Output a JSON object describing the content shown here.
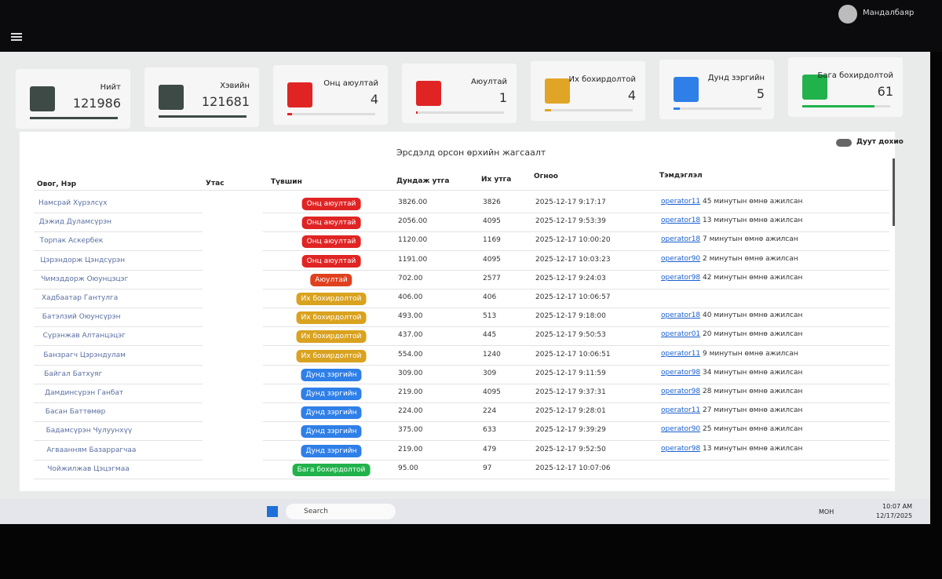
{
  "header": {
    "user": "Мандалбаяр"
  },
  "cards": [
    {
      "label": "Нийт",
      "value": 121986,
      "color": "#3d4a45"
    },
    {
      "label": "Хэвийн",
      "value": 121681,
      "color": "#3d4a45"
    },
    {
      "label": "Онц аюултай",
      "value": 4,
      "color": "#e02424"
    },
    {
      "label": "Аюултай",
      "value": 1,
      "color": "#e02424"
    },
    {
      "label": "Их бохирдолтой",
      "value": 4,
      "color": "#e0a526"
    },
    {
      "label": "Дунд зэргийн",
      "value": 5,
      "color": "#2f7fe8"
    },
    {
      "label": "Бага бохирдолтой",
      "value": 61,
      "color": "#22b24c"
    }
  ],
  "table": {
    "title": "Эрсдэлд орсон өрхийн жагсаалт",
    "toggle": "Дуут дохио",
    "columns": [
      "Овог, Нэр",
      "Утас",
      "Түвшин",
      "Дундаж утга",
      "Их утга",
      "Огноо",
      "Тэмдэглэл"
    ],
    "rows": [
      {
        "name": "Намсрай Хүрэлсүх",
        "level": "Онц аюултай",
        "color": "#e02424",
        "avg": "3826.00",
        "max": 3826,
        "date": "2025-12-17 9:17:17",
        "operator": "operator11",
        "note": "45 минутын өмнө ажилсан"
      },
      {
        "name": "Дэжид Дуламсүрэн",
        "level": "Онц аюултай",
        "color": "#e02424",
        "avg": "2056.00",
        "max": 4095,
        "date": "2025-12-17 9:53:39",
        "operator": "operator18",
        "note": "13 минутын өмнө ажилсан"
      },
      {
        "name": "Торпак Аскербек",
        "level": "Онц аюултай",
        "color": "#e02424",
        "avg": "1120.00",
        "max": 1169,
        "date": "2025-12-17 10:00:20",
        "operator": "operator18",
        "note": "7 минутын өмнө ажилсан"
      },
      {
        "name": "Цэрэндорж Цэндсүрэн",
        "level": "Онц аюултай",
        "color": "#e02424",
        "avg": "1191.00",
        "max": 4095,
        "date": "2025-12-17 10:03:23",
        "operator": "operator90",
        "note": "2 минутын өмнө ажилсан"
      },
      {
        "name": "Чимэддорж Оюунцэцэг",
        "level": "Аюултай",
        "color": "#e0401e",
        "avg": "702.00",
        "max": 2577,
        "date": "2025-12-17 9:24:03",
        "operator": "operator98",
        "note": "42 минутын өмнө ажилсан"
      },
      {
        "name": "Хадбаатар Гантулга",
        "level": "Их бохирдолтой",
        "color": "#d9a21f",
        "avg": "406.00",
        "max": 406,
        "date": "2025-12-17 10:06:57"
      },
      {
        "name": "Батэлзий Оюунсүрэн",
        "level": "Их бохирдолтой",
        "color": "#d9a21f",
        "avg": "493.00",
        "max": 513,
        "date": "2025-12-17 9:18:00",
        "operator": "operator18",
        "note": "40 минутын өмнө ажилсан"
      },
      {
        "name": "Сүрэнжав Алтанцэцэг",
        "level": "Их бохирдолтой",
        "color": "#d9a21f",
        "avg": "437.00",
        "max": 445,
        "date": "2025-12-17 9:50:53",
        "operator": "operator01",
        "note": "20 минутын өмнө ажилсан"
      },
      {
        "name": "Банзрагч Цэрэндулам",
        "level": "Их бохирдолтой",
        "color": "#d9a21f",
        "avg": "554.00",
        "max": 1240,
        "date": "2025-12-17 10:06:51",
        "operator": "operator11",
        "note": "9 минутын өмнө ажилсан"
      },
      {
        "name": "Байгал Батхуяг",
        "level": "Дунд зэргийн",
        "color": "#2f7fe8",
        "avg": "309.00",
        "max": 309,
        "date": "2025-12-17 9:11:59",
        "operator": "operator98",
        "note": "34 минутын өмнө ажилсан"
      },
      {
        "name": "Дамдинсүрэн Ганбат",
        "level": "Дунд зэргийн",
        "color": "#2f7fe8",
        "avg": "219.00",
        "max": 4095,
        "date": "2025-12-17 9:37:31",
        "operator": "operator98",
        "note": "28 минутын өмнө ажилсан"
      },
      {
        "name": "Басан Баттөмөр",
        "level": "Дунд зэргийн",
        "color": "#2f7fe8",
        "avg": "224.00",
        "max": 224,
        "date": "2025-12-17 9:28:01",
        "operator": "operator11",
        "note": "27 минутын өмнө ажилсан"
      },
      {
        "name": "Бадамсүрэн Чулуунхүү",
        "level": "Дунд зэргийн",
        "color": "#2f7fe8",
        "avg": "375.00",
        "max": 633,
        "date": "2025-12-17 9:39:29",
        "operator": "operator90",
        "note": "25 минутын өмнө ажилсан"
      },
      {
        "name": "Агваанням Базаррагчаа",
        "level": "Дунд зэргийн",
        "color": "#2f7fe8",
        "avg": "219.00",
        "max": 479,
        "date": "2025-12-17 9:52:50",
        "operator": "operator98",
        "note": "13 минутын өмнө ажилсан"
      },
      {
        "name": "Чойжилжав Цэцэгмаа",
        "level": "Бага бохирдолтой",
        "color": "#22b24c",
        "avg": "95.00",
        "max": 97,
        "date": "2025-12-17 10:07:06"
      }
    ]
  },
  "taskbar": {
    "search": "Search",
    "lang": "МОН",
    "time": "10:07 AM",
    "date": "12/17/2025"
  }
}
